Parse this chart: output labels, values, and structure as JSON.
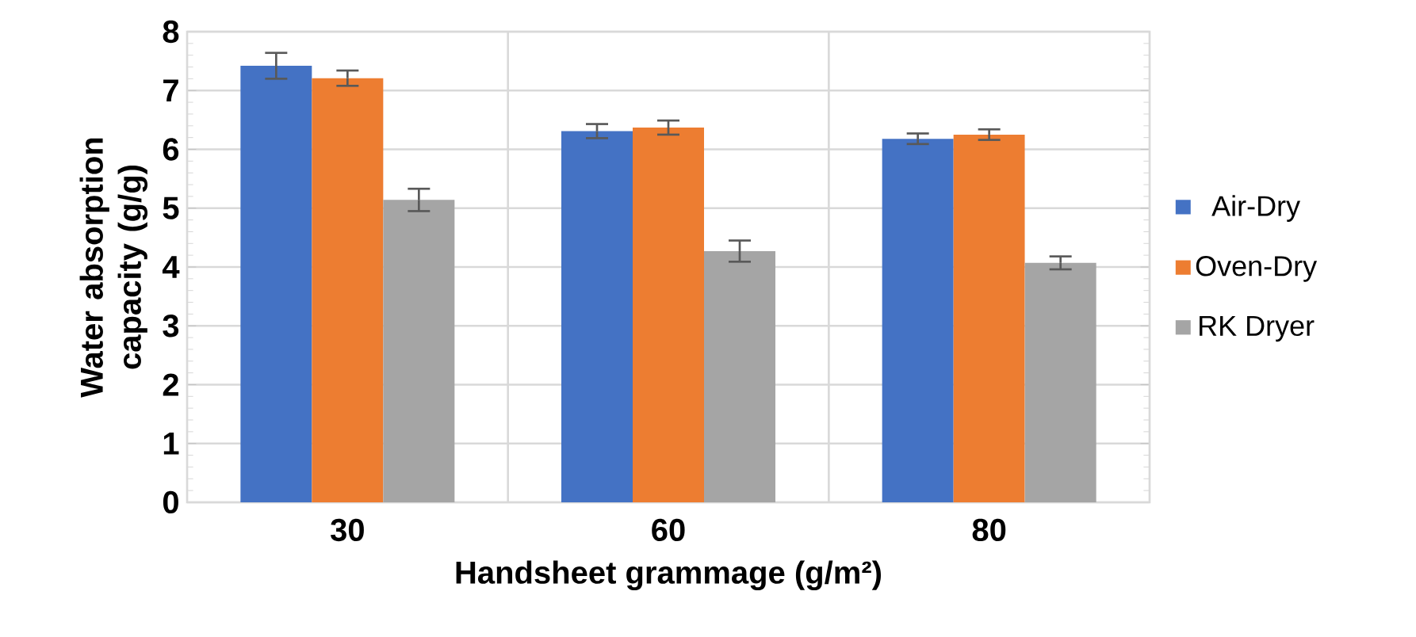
{
  "chart_data": {
    "type": "bar",
    "xlabel": "Handsheet grammage (g/m²)",
    "ylabel": "Water absorption capacity (g/g)",
    "categories": [
      "30",
      "60",
      "80"
    ],
    "series": [
      {
        "name": "Air-Dry",
        "color": "#4472c4",
        "values": [
          7.42,
          6.31,
          6.18
        ],
        "errors": [
          0.22,
          0.12,
          0.09
        ]
      },
      {
        "name": "Oven-Dry",
        "color": "#ed7d31",
        "values": [
          7.21,
          6.37,
          6.25
        ],
        "errors": [
          0.13,
          0.12,
          0.09
        ]
      },
      {
        "name": "RK Dryer",
        "color": "#a5a5a5",
        "values": [
          5.14,
          4.27,
          4.07
        ],
        "errors": [
          0.19,
          0.18,
          0.11
        ]
      }
    ],
    "ylim": [
      0,
      8
    ],
    "yticks": [
      0,
      1,
      2,
      3,
      4,
      5,
      6,
      7,
      8
    ],
    "grid": true,
    "legend": "right"
  }
}
